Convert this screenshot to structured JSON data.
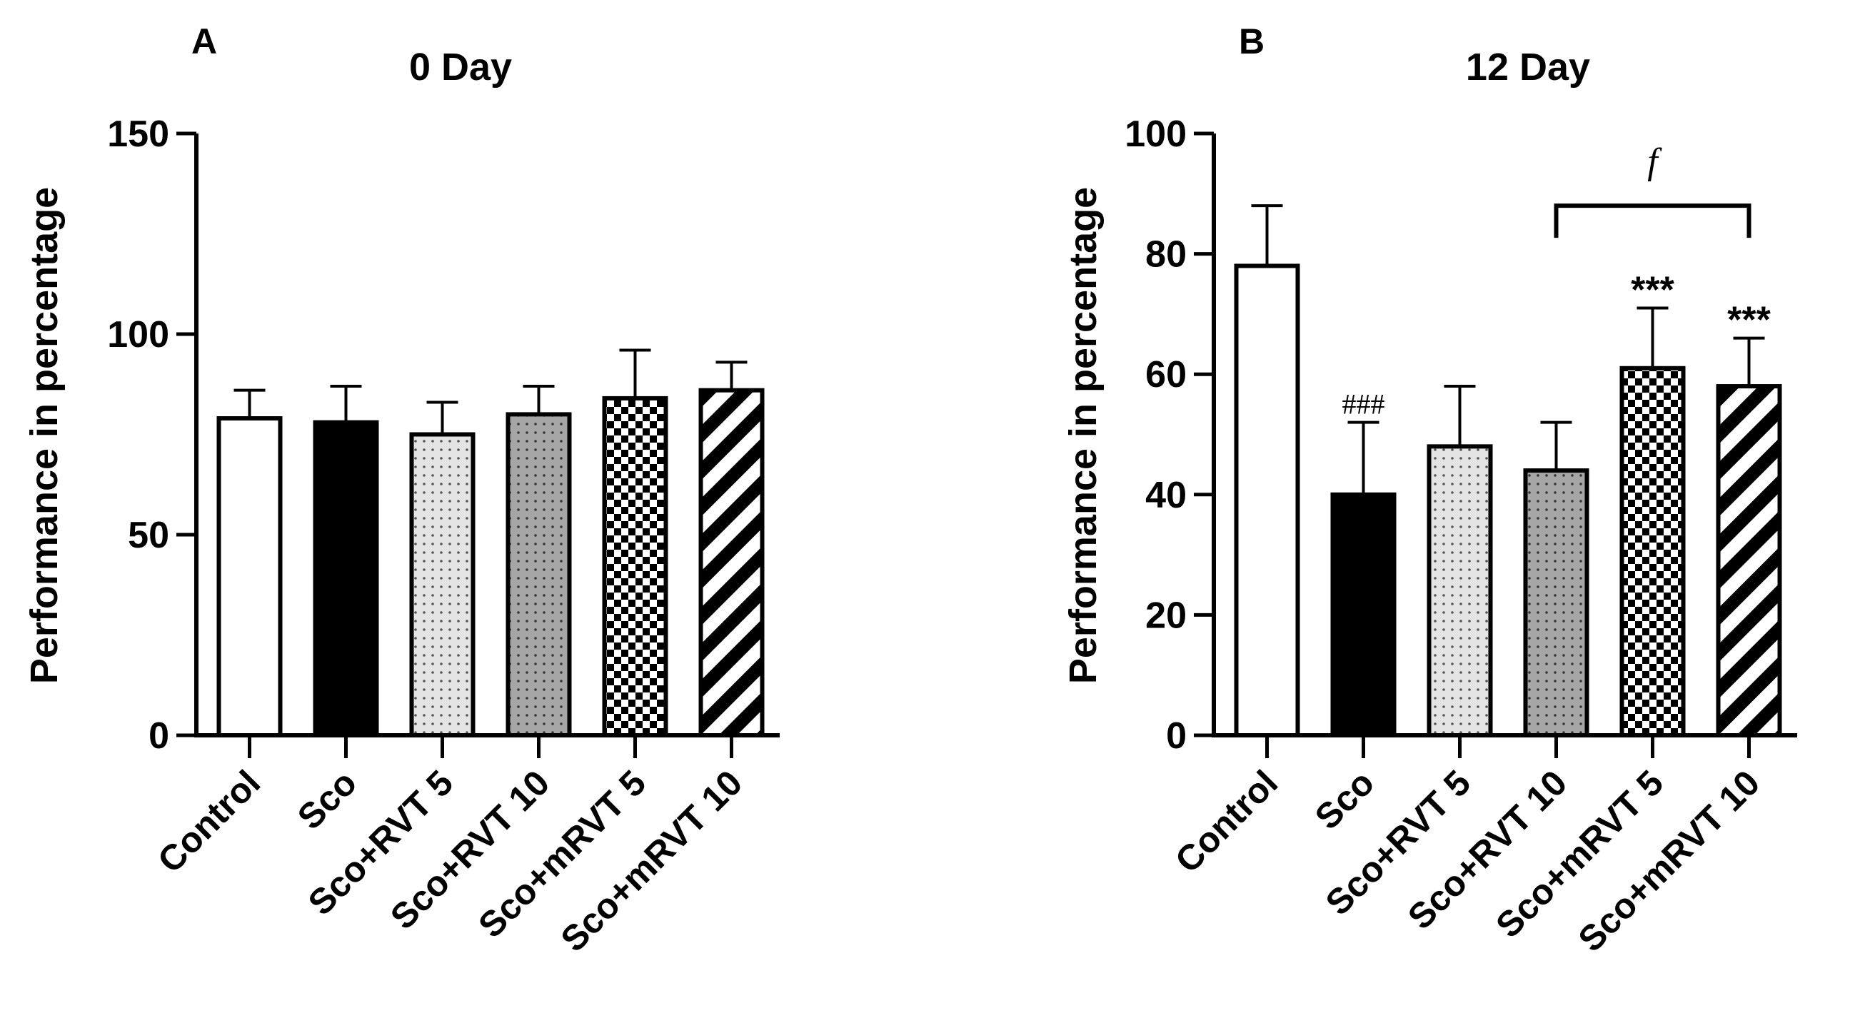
{
  "chart_data": [
    {
      "type": "bar",
      "panel_label": "A",
      "title": "0 Day",
      "xlabel": "",
      "ylabel": "Performance in percentage",
      "ylim": [
        0,
        150
      ],
      "yticks": [
        0,
        50,
        100,
        150
      ],
      "categories": [
        "Control",
        "Sco",
        "Sco+RVT 5",
        "Sco+RVT 10",
        "Sco+mRVT 5",
        "Sco+mRVT 10"
      ],
      "values": [
        79,
        78,
        75,
        80,
        84,
        86
      ],
      "errors": [
        7,
        9,
        8,
        7,
        12,
        7
      ],
      "patterns": [
        "white",
        "black",
        "light-dots",
        "grey-dots",
        "checker",
        "stripes"
      ],
      "annotations": [],
      "bracket": null
    },
    {
      "type": "bar",
      "panel_label": "B",
      "title": "12 Day",
      "xlabel": "",
      "ylabel": "Performance in percentage",
      "ylim": [
        0,
        100
      ],
      "yticks": [
        0,
        20,
        40,
        60,
        80,
        100
      ],
      "categories": [
        "Control",
        "Sco",
        "Sco+RVT 5",
        "Sco+RVT 10",
        "Sco+mRVT 5",
        "Sco+mRVT 10"
      ],
      "values": [
        78,
        40,
        48,
        44,
        61,
        58
      ],
      "errors": [
        10,
        12,
        10,
        8,
        10,
        8
      ],
      "patterns": [
        "white",
        "black",
        "light-dots",
        "grey-dots",
        "checker",
        "stripes"
      ],
      "annotations": [
        "",
        "###",
        "",
        "",
        "***",
        "***"
      ],
      "bracket": {
        "from": 3,
        "to": 5,
        "label": "f",
        "y": 88
      }
    }
  ]
}
